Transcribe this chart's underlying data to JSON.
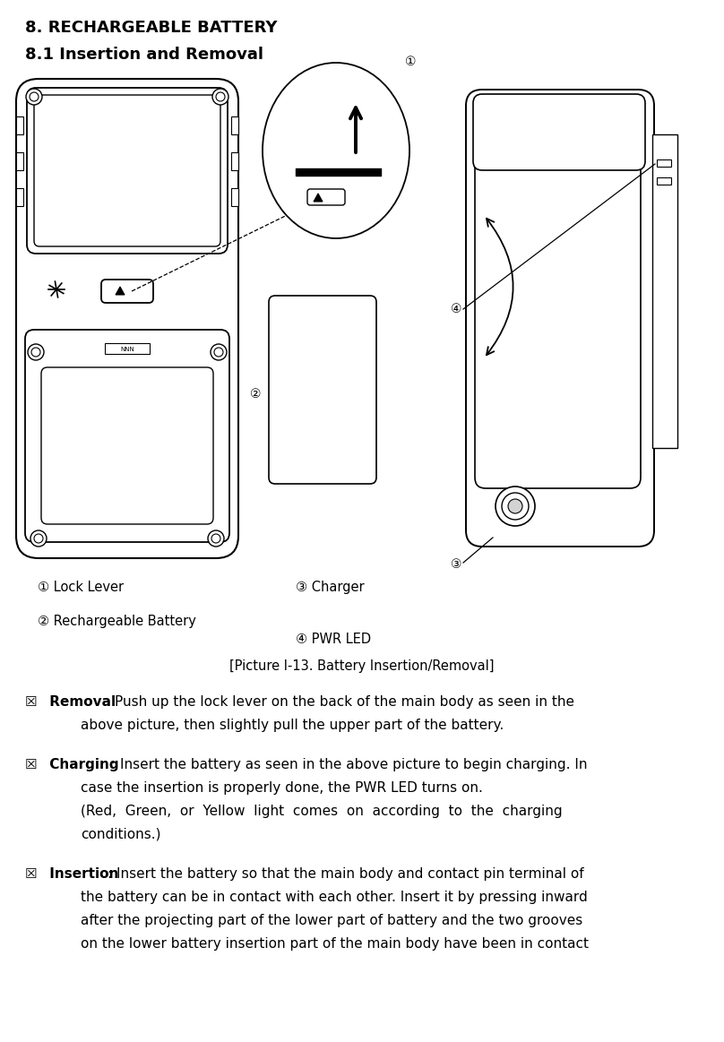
{
  "title1": "8. RECHARGEABLE BATTERY",
  "title2": "8.1 Insertion and Removal",
  "caption": "[Picture I-13. Battery Insertion/Removal]",
  "label1": "① Lock Lever",
  "label2": "② Rechargeable Battery",
  "label3": "③ Charger",
  "label4": "④ PWR LED",
  "bg_color": "#ffffff",
  "text_color": "#000000"
}
